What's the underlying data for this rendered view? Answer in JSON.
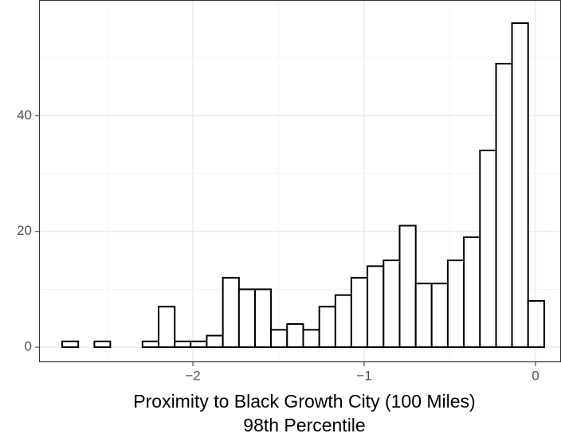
{
  "chart_data": {
    "type": "histogram",
    "xlabel": [
      "Proximity to Black Growth City (100 Miles)",
      "98th Percentile"
    ],
    "bins": [
      -2.763,
      -2.669,
      -2.575,
      -2.482,
      -2.388,
      -2.294,
      -2.2,
      -2.106,
      -2.013,
      -1.919,
      -1.825,
      -1.731,
      -1.637,
      -1.544,
      -1.45,
      -1.356,
      -1.262,
      -1.168,
      -1.075,
      -0.981,
      -0.887,
      -0.793,
      -0.699,
      -0.606,
      -0.512,
      -0.418,
      -0.324,
      -0.23,
      -0.137,
      -0.043,
      0.051
    ],
    "values": [
      1,
      0,
      1,
      0,
      0,
      1,
      7,
      1,
      1,
      2,
      12,
      10,
      10,
      3,
      4,
      3,
      7,
      9,
      12,
      14,
      15,
      21,
      11,
      11,
      15,
      19,
      34,
      49,
      56,
      8
    ],
    "color": "#ffffff",
    "xlim": [
      -2.898,
      0.149
    ],
    "ylim": [
      -2.6,
      60
    ],
    "xticks": [
      {
        "value": -2,
        "label": "−2"
      },
      {
        "value": -1,
        "label": "−1"
      },
      0
    ],
    "yticks": [
      0,
      20,
      40
    ],
    "minor_xticks": [
      -2.5,
      -1.5,
      -0.5
    ],
    "minor_yticks": [
      10,
      30,
      50
    ],
    "grid": true
  }
}
